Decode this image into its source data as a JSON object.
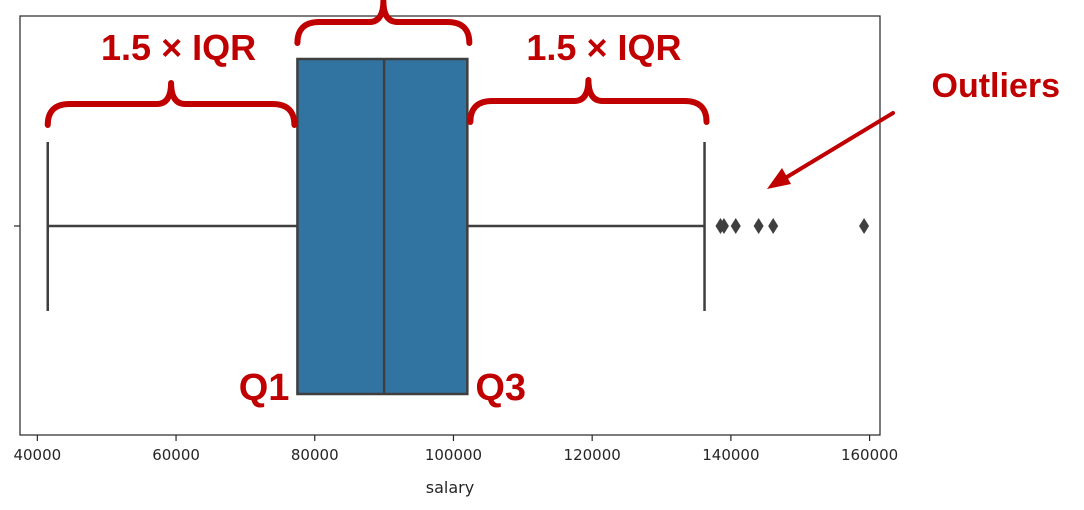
{
  "chart_data": {
    "type": "boxplot",
    "xlabel": "salary",
    "xlim": [
      37500,
      161500
    ],
    "x_ticks": [
      40000,
      60000,
      80000,
      100000,
      120000,
      140000,
      160000
    ],
    "x_tick_labels": [
      "40000",
      "60000",
      "80000",
      "100000",
      "120000",
      "140000",
      "160000"
    ],
    "grid": false,
    "box": {
      "whisker_low": 41500,
      "q1": 77500,
      "median": 90000,
      "q3": 102000,
      "whisker_high": 136200
    },
    "outliers": [
      138500,
      139000,
      140700,
      144000,
      146100,
      159200
    ],
    "colors": {
      "box": "#3274a1",
      "lines": "#3f3f3f",
      "annotation": "#c00000"
    },
    "annotations": {
      "left_bracket_label": "1.5 × IQR",
      "right_bracket_label": "1.5 × IQR",
      "q1_label": "Q1",
      "q3_label": "Q3",
      "outliers_label": "Outliers"
    }
  }
}
